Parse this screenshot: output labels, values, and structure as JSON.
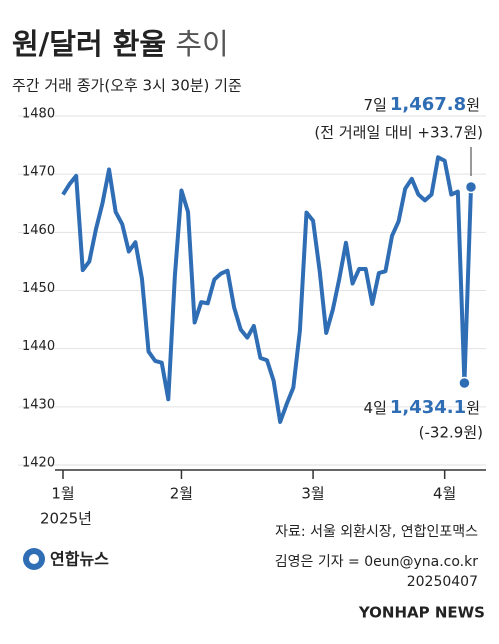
{
  "title": "원/달러 환율",
  "title_suffix": "추이",
  "chart_data": {
    "type": "line",
    "subtitle": "주간 거래 종가(오후 3시 30분) 기준",
    "categories": [
      "1월",
      null,
      null,
      null,
      null,
      null,
      null,
      null,
      null,
      null,
      null,
      null,
      null,
      null,
      null,
      null,
      null,
      null,
      "2월",
      null,
      null,
      null,
      null,
      null,
      null,
      null,
      null,
      null,
      null,
      null,
      null,
      null,
      null,
      null,
      null,
      null,
      null,
      null,
      "3월",
      null,
      null,
      null,
      null,
      null,
      null,
      null,
      null,
      null,
      null,
      null,
      null,
      null,
      null,
      null,
      null,
      null,
      null,
      null,
      "4월",
      null,
      null,
      null,
      null
    ],
    "year_label": "2025년",
    "values": [
      1466.5,
      1468.3,
      1469.7,
      1453.5,
      1455.0,
      1460.5,
      1465.0,
      1470.8,
      1463.5,
      1461.4,
      1456.7,
      1458.3,
      1452.0,
      1439.5,
      1437.9,
      1437.6,
      1431.3,
      1452.5,
      1467.2,
      1463.5,
      1444.5,
      1448.0,
      1447.8,
      1451.9,
      1452.9,
      1453.4,
      1447.1,
      1443.3,
      1441.9,
      1443.9,
      1438.4,
      1438.0,
      1434.5,
      1427.4,
      1430.5,
      1433.3,
      1443.1,
      1463.4,
      1462.0,
      1453.4,
      1442.7,
      1446.7,
      1452.1,
      1458.2,
      1451.2,
      1453.7,
      1453.7,
      1447.7,
      1453.0,
      1453.3,
      1459.4,
      1461.9,
      1467.5,
      1469.2,
      1466.5,
      1465.5,
      1466.5,
      1472.9,
      1472.3,
      1466.5,
      1467.0,
      1434.1,
      1467.8
    ],
    "value_labels": [
      null,
      null,
      null,
      null,
      null,
      null,
      null,
      null,
      null,
      null,
      null,
      null,
      null,
      null,
      null,
      null,
      null,
      null,
      null,
      null,
      null,
      null,
      null,
      null,
      null,
      null,
      null,
      null,
      null,
      null,
      null,
      null,
      null,
      null,
      null,
      null,
      null,
      null,
      null,
      null,
      null,
      null,
      null,
      null,
      null,
      null,
      null,
      null,
      null,
      null,
      null,
      null,
      null,
      null,
      null,
      null,
      null,
      null,
      null,
      null,
      null,
      "1,434.1",
      "1,467.8"
    ],
    "color": "#2f6db4",
    "ylim": [
      1420,
      1480
    ],
    "yticks": [
      1420,
      1430,
      1440,
      1450,
      1460,
      1470,
      1480
    ],
    "grid": true,
    "annotations": [
      {
        "index": 62,
        "before": "7일",
        "after": "원",
        "note": "(전 거래일 대비 +33.7원)"
      },
      {
        "index": 61,
        "before": "4일",
        "after": "원",
        "note": "(-32.9원)"
      }
    ]
  },
  "footer": {
    "source": "자료: 서울 외환시장, 연합인포맥스",
    "reporter": "김영은 기자 = 0eun@yna.co.kr",
    "date": "20250407",
    "logo": "연합뉴스",
    "watermark": "YONHAP NEWS"
  }
}
